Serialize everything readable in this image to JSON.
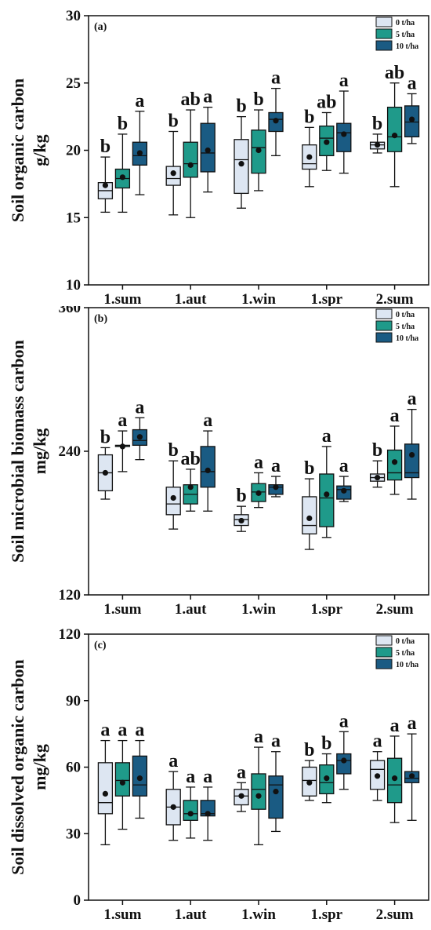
{
  "chart_data": [
    {
      "type": "box",
      "panel_label": "(a)",
      "ylabel_lines": [
        "Soil organic carbon",
        "g/kg"
      ],
      "ylim": [
        10,
        30
      ],
      "yticks": [
        10,
        15,
        20,
        25,
        30
      ],
      "categories": [
        "1.sum",
        "1.aut",
        "1.win",
        "1.spr",
        "2.sum"
      ],
      "legend_position": "top-right",
      "series": [
        {
          "name": "0 t/ha",
          "color": "#dde6f2",
          "boxes": [
            {
              "min": 15.4,
              "q1": 16.4,
              "median": 17.0,
              "q3": 17.6,
              "max": 19.5,
              "mean": 17.4,
              "sig": "b"
            },
            {
              "min": 15.2,
              "q1": 17.4,
              "median": 17.9,
              "q3": 18.8,
              "max": 21.4,
              "mean": 18.3,
              "sig": "b"
            },
            {
              "min": 15.7,
              "q1": 16.8,
              "median": 19.3,
              "q3": 20.8,
              "max": 22.5,
              "mean": 19.0,
              "sig": "b"
            },
            {
              "min": 17.3,
              "q1": 18.6,
              "median": 19.0,
              "q3": 20.4,
              "max": 21.7,
              "mean": 19.5,
              "sig": "b"
            },
            {
              "min": 19.8,
              "q1": 20.1,
              "median": 20.4,
              "q3": 20.6,
              "max": 21.2,
              "mean": 20.4,
              "sig": "b"
            }
          ]
        },
        {
          "name": "5 t/ha",
          "color": "#1f9a8a",
          "boxes": [
            {
              "min": 15.4,
              "q1": 17.2,
              "median": 17.9,
              "q3": 18.6,
              "max": 21.2,
              "mean": 18.0,
              "sig": "b"
            },
            {
              "min": 15.0,
              "q1": 18.0,
              "median": 19.0,
              "q3": 20.6,
              "max": 23.0,
              "mean": 18.9,
              "sig": "ab"
            },
            {
              "min": 17.0,
              "q1": 18.3,
              "median": 20.2,
              "q3": 21.5,
              "max": 23.0,
              "mean": 20.0,
              "sig": "b"
            },
            {
              "min": 18.5,
              "q1": 19.6,
              "median": 20.9,
              "q3": 21.8,
              "max": 22.8,
              "mean": 20.6,
              "sig": "ab"
            },
            {
              "min": 17.3,
              "q1": 19.9,
              "median": 21.0,
              "q3": 23.2,
              "max": 25.0,
              "mean": 21.1,
              "sig": "ab"
            }
          ]
        },
        {
          "name": "10 t/ha",
          "color": "#1a5b83",
          "boxes": [
            {
              "min": 16.7,
              "q1": 18.9,
              "median": 19.6,
              "q3": 20.6,
              "max": 22.9,
              "mean": 19.8,
              "sig": "a"
            },
            {
              "min": 16.9,
              "q1": 18.4,
              "median": 19.8,
              "q3": 22.0,
              "max": 23.2,
              "mean": 20.0,
              "sig": "a"
            },
            {
              "min": 19.6,
              "q1": 21.4,
              "median": 22.3,
              "q3": 22.8,
              "max": 24.6,
              "mean": 22.2,
              "sig": "a"
            },
            {
              "min": 18.3,
              "q1": 19.9,
              "median": 21.3,
              "q3": 22.0,
              "max": 24.4,
              "mean": 21.2,
              "sig": "a"
            },
            {
              "min": 20.5,
              "q1": 21.0,
              "median": 22.1,
              "q3": 23.3,
              "max": 24.2,
              "mean": 22.3,
              "sig": "a"
            }
          ]
        }
      ]
    },
    {
      "type": "box",
      "panel_label": "(b)",
      "ylabel_lines": [
        "Soil microbial biomass carbon",
        "mg/kg"
      ],
      "ylim": [
        120,
        360
      ],
      "yticks": [
        120,
        240,
        360
      ],
      "categories": [
        "1.sum",
        "1.aut",
        "1.win",
        "1.spr",
        "2.sum"
      ],
      "legend_position": "top-right",
      "series": [
        {
          "name": "0 t/ha",
          "color": "#dde6f2",
          "boxes": [
            {
              "min": 200,
              "q1": 207,
              "median": 222,
              "q3": 237,
              "max": 243,
              "mean": 222,
              "sig": "b"
            },
            {
              "min": 175,
              "q1": 187,
              "median": 196,
              "q3": 210,
              "max": 232,
              "mean": 201,
              "sig": "b"
            },
            {
              "min": 173,
              "q1": 178,
              "median": 183,
              "q3": 187,
              "max": 194,
              "mean": 182,
              "sig": "b"
            },
            {
              "min": 158,
              "q1": 171,
              "median": 178,
              "q3": 202,
              "max": 217,
              "mean": 184,
              "sig": "b"
            },
            {
              "min": 210,
              "q1": 215,
              "median": 218,
              "q3": 221,
              "max": 232,
              "mean": 218,
              "sig": "b"
            }
          ]
        },
        {
          "name": "5 t/ha",
          "color": "#1f9a8a",
          "boxes": [
            {
              "min": 223,
              "q1": 244,
              "median": 244,
              "q3": 245,
              "max": 257,
              "mean": 244,
              "sig": "a"
            },
            {
              "min": 190,
              "q1": 196,
              "median": 204,
              "q3": 212,
              "max": 225,
              "mean": 210,
              "sig": "ab"
            },
            {
              "min": 193,
              "q1": 198,
              "median": 206,
              "q3": 213,
              "max": 222,
              "mean": 205,
              "sig": "a"
            },
            {
              "min": 168,
              "q1": 177,
              "median": 201,
              "q3": 221,
              "max": 244,
              "mean": 204,
              "sig": "a"
            },
            {
              "min": 204,
              "q1": 216,
              "median": 222,
              "q3": 241,
              "max": 261,
              "mean": 231,
              "sig": "a"
            }
          ]
        },
        {
          "name": "10 t/ha",
          "color": "#1a5b83",
          "boxes": [
            {
              "min": 233,
              "q1": 245,
              "median": 249,
              "q3": 258,
              "max": 268,
              "mean": 252,
              "sig": "a"
            },
            {
              "min": 190,
              "q1": 210,
              "median": 223,
              "q3": 244,
              "max": 257,
              "mean": 224,
              "sig": "a"
            },
            {
              "min": 202,
              "q1": 204,
              "median": 210,
              "q3": 212,
              "max": 219,
              "mean": 210,
              "sig": "a"
            },
            {
              "min": 198,
              "q1": 200,
              "median": 208,
              "q3": 211,
              "max": 219,
              "mean": 207,
              "sig": "a"
            },
            {
              "min": 200,
              "q1": 218,
              "median": 222,
              "q3": 246,
              "max": 275,
              "mean": 237,
              "sig": "a"
            }
          ]
        }
      ]
    },
    {
      "type": "box",
      "panel_label": "(c)",
      "ylabel_lines": [
        "Soil dissolved organic carbon",
        "mg/kg"
      ],
      "ylim": [
        0,
        120
      ],
      "yticks": [
        0,
        30,
        60,
        90,
        120
      ],
      "categories": [
        "1.sum",
        "1.aut",
        "1.win",
        "1.spr",
        "2.sum"
      ],
      "legend_position": "top-right",
      "series": [
        {
          "name": "0 t/ha",
          "color": "#dde6f2",
          "boxes": [
            {
              "min": 25,
              "q1": 39,
              "median": 44,
              "q3": 62,
              "max": 72,
              "mean": 48,
              "sig": "a"
            },
            {
              "min": 27,
              "q1": 34,
              "median": 42,
              "q3": 50,
              "max": 58,
              "mean": 42,
              "sig": "a"
            },
            {
              "min": 40,
              "q1": 43,
              "median": 47,
              "q3": 50,
              "max": 53,
              "mean": 47,
              "sig": "a"
            },
            {
              "min": 45,
              "q1": 47,
              "median": 54,
              "q3": 60,
              "max": 63,
              "mean": 53,
              "sig": "b"
            },
            {
              "min": 45,
              "q1": 50,
              "median": 59,
              "q3": 63,
              "max": 67,
              "mean": 56,
              "sig": "a"
            }
          ]
        },
        {
          "name": "5 t/ha",
          "color": "#1f9a8a",
          "boxes": [
            {
              "min": 32,
              "q1": 47,
              "median": 54,
              "q3": 62,
              "max": 72,
              "mean": 53,
              "sig": "a"
            },
            {
              "min": 28,
              "q1": 36,
              "median": 39,
              "q3": 45,
              "max": 51,
              "mean": 39,
              "sig": "a"
            },
            {
              "min": 25,
              "q1": 41,
              "median": 50,
              "q3": 57,
              "max": 69,
              "mean": 47,
              "sig": "a"
            },
            {
              "min": 44,
              "q1": 48,
              "median": 53,
              "q3": 61,
              "max": 66,
              "mean": 55,
              "sig": "b"
            },
            {
              "min": 35,
              "q1": 44,
              "median": 52,
              "q3": 64,
              "max": 74,
              "mean": 55,
              "sig": "a"
            }
          ]
        },
        {
          "name": "10 t/ha",
          "color": "#1a5b83",
          "boxes": [
            {
              "min": 37,
              "q1": 47,
              "median": 52,
              "q3": 65,
              "max": 72,
              "mean": 55,
              "sig": "a"
            },
            {
              "min": 27,
              "q1": 38,
              "median": 39,
              "q3": 45,
              "max": 51,
              "mean": 39,
              "sig": "a"
            },
            {
              "min": 31,
              "q1": 37,
              "median": 52,
              "q3": 56,
              "max": 67,
              "mean": 49,
              "sig": "a"
            },
            {
              "min": 50,
              "q1": 57,
              "median": 63,
              "q3": 66,
              "max": 76,
              "mean": 63,
              "sig": "a"
            },
            {
              "min": 36,
              "q1": 53,
              "median": 55,
              "q3": 58,
              "max": 75,
              "mean": 56,
              "sig": "a"
            }
          ]
        }
      ]
    }
  ]
}
